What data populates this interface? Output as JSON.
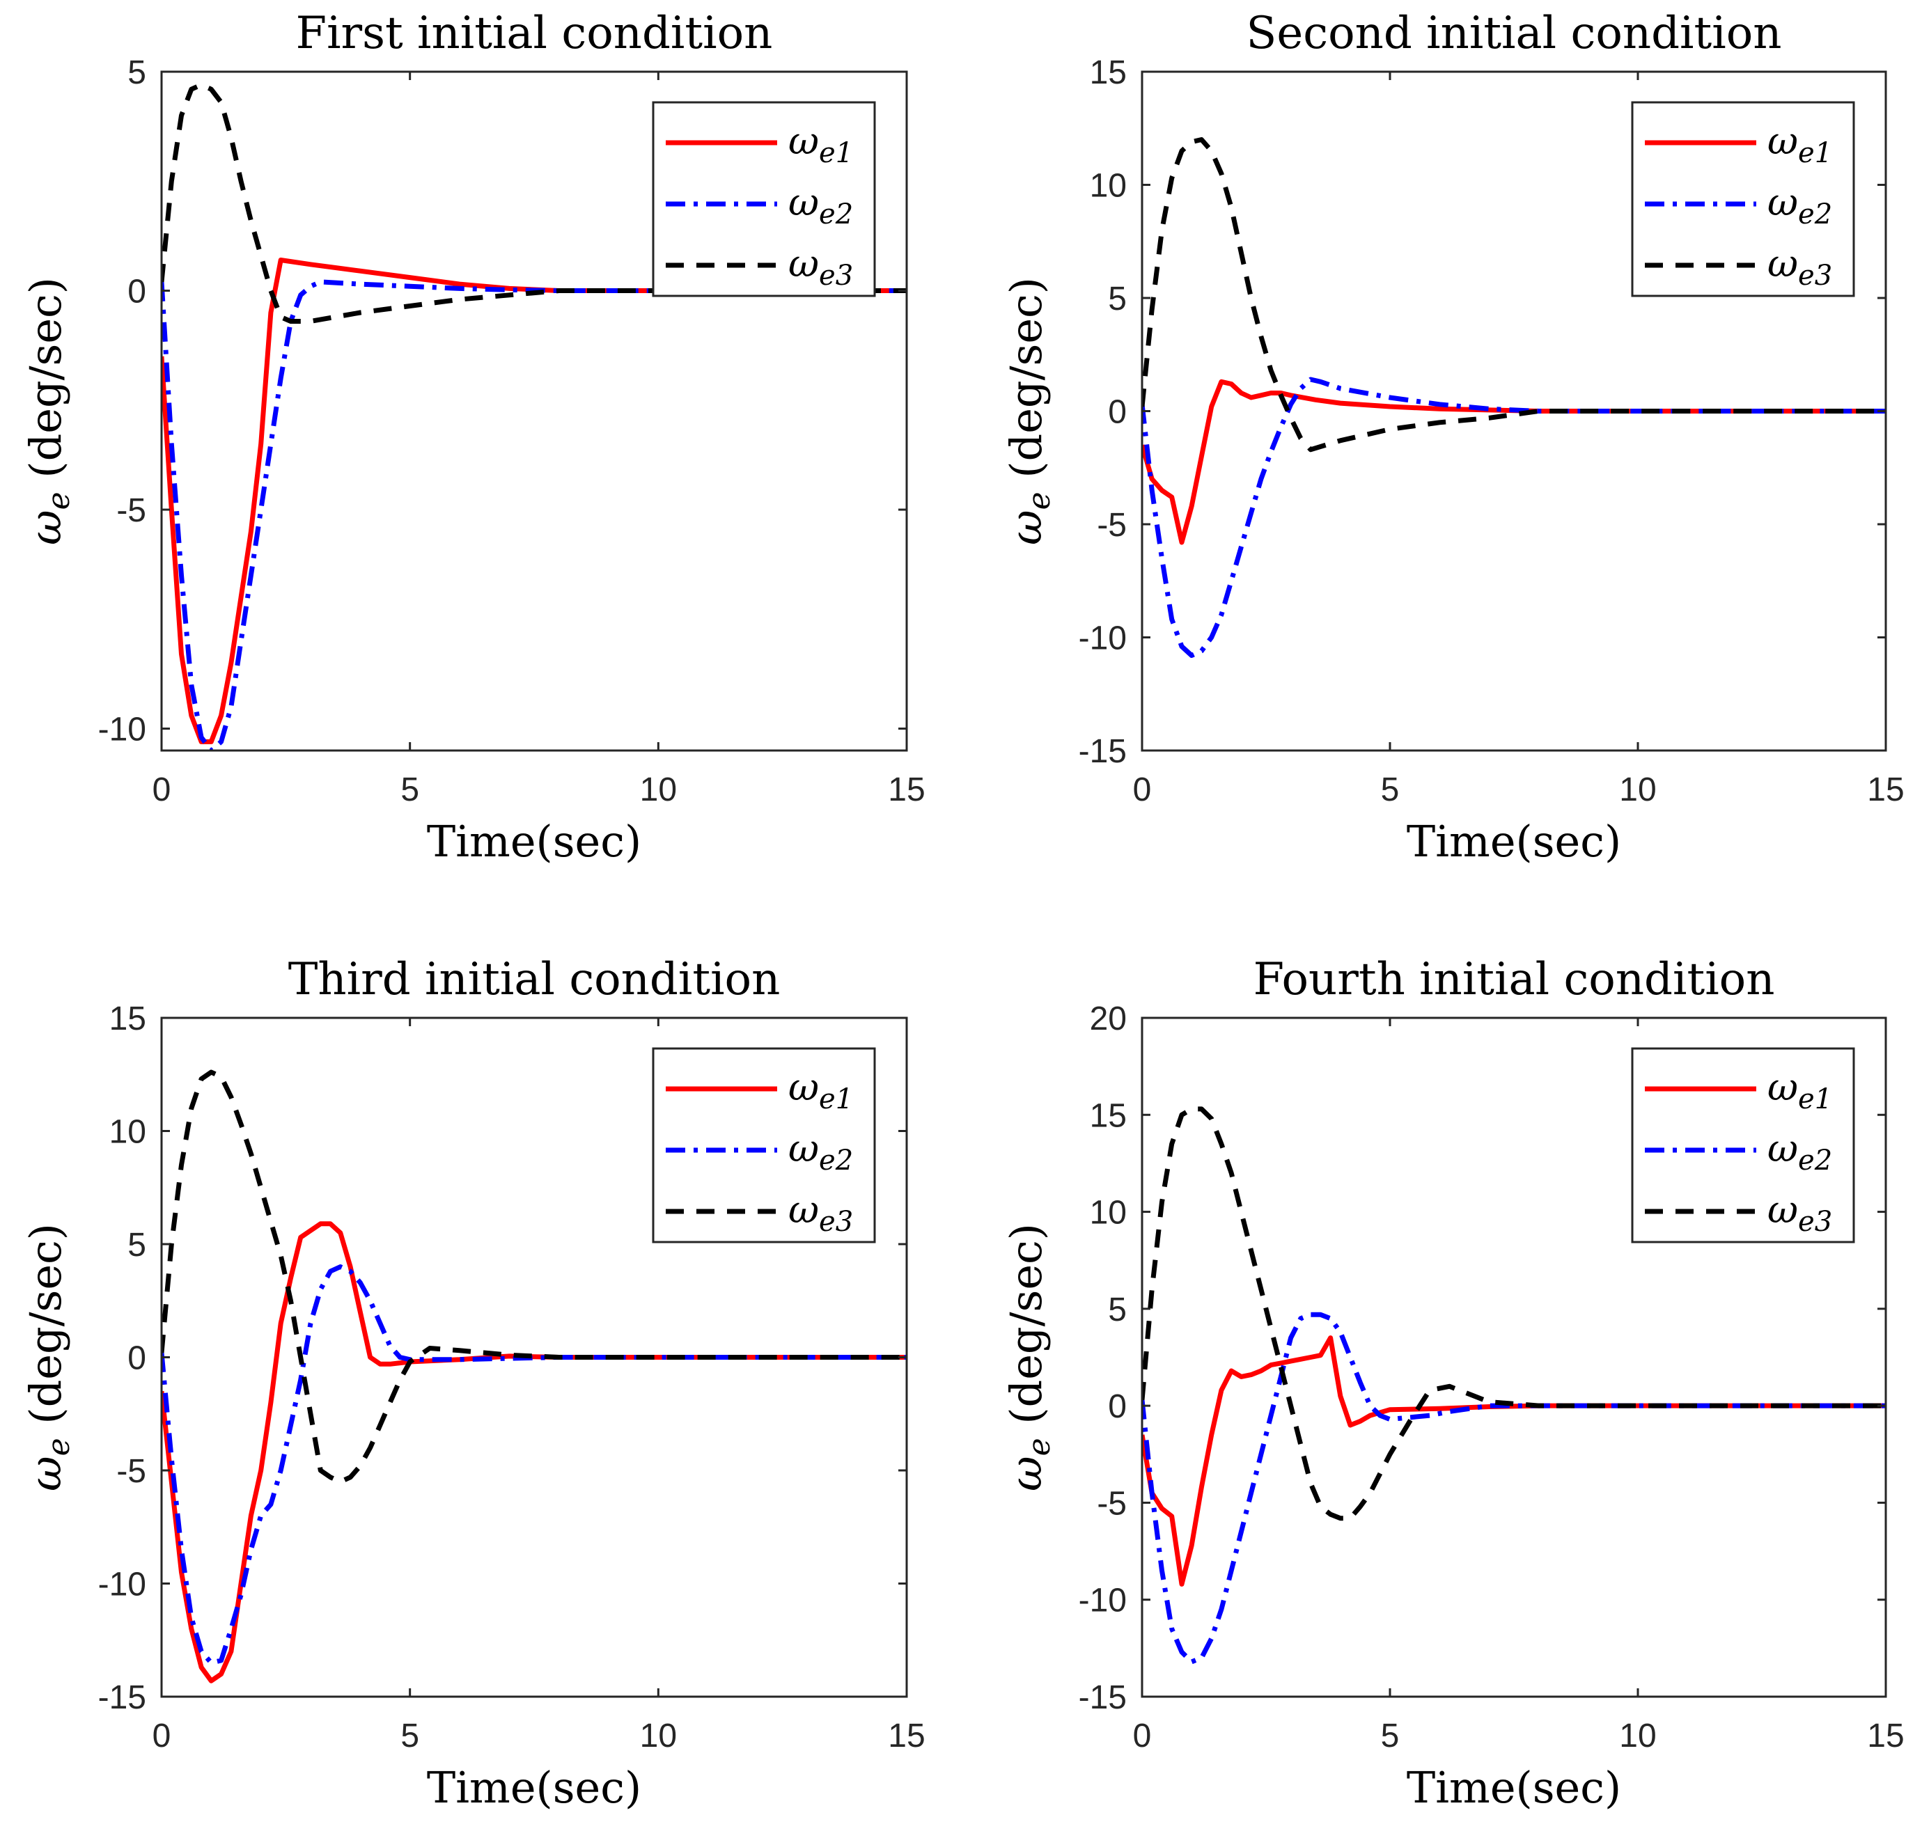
{
  "figure": {
    "colors": {
      "we1": "#ff0000",
      "we2": "#0000ff",
      "we3": "#000000",
      "axis": "#262626"
    }
  },
  "chart_data": [
    {
      "type": "line",
      "title": "First initial condition",
      "xlabel": "Time(sec)",
      "ylabel": "ω_e (deg/sec)",
      "xlim": [
        0,
        15
      ],
      "ylim": [
        -10.5,
        5
      ],
      "xticks": [
        0,
        5,
        10,
        15
      ],
      "yticks": [
        -10,
        -5,
        0,
        5
      ],
      "legend_position": "top-right",
      "series": [
        {
          "name": "ω_e1",
          "style": "solid",
          "x": [
            0,
            0.2,
            0.4,
            0.6,
            0.8,
            1.0,
            1.2,
            1.4,
            1.6,
            1.8,
            2.0,
            2.2,
            2.4,
            3.0,
            4.0,
            5.0,
            6.0,
            7.0,
            8.0,
            15
          ],
          "y": [
            -1.5,
            -5,
            -8.3,
            -9.7,
            -10.3,
            -10.3,
            -9.7,
            -8.5,
            -7.0,
            -5.5,
            -3.5,
            -0.5,
            0.7,
            0.6,
            0.45,
            0.3,
            0.15,
            0.05,
            0,
            0
          ]
        },
        {
          "name": "ω_e2",
          "style": "dashdot",
          "x": [
            0,
            0.2,
            0.4,
            0.6,
            0.8,
            1.0,
            1.2,
            1.4,
            1.6,
            1.8,
            2.0,
            2.2,
            2.4,
            2.6,
            2.8,
            3.0,
            3.2,
            4.0,
            5.0,
            6.0,
            7.0,
            8.0,
            15
          ],
          "y": [
            0.2,
            -3.5,
            -6.5,
            -9.0,
            -10.2,
            -10.5,
            -10.3,
            -9.5,
            -8.0,
            -6.5,
            -5.0,
            -3.5,
            -2.0,
            -0.7,
            -0.1,
            0.1,
            0.2,
            0.15,
            0.1,
            0.05,
            0.02,
            0,
            0
          ]
        },
        {
          "name": "ω_e3",
          "style": "dashed",
          "x": [
            0,
            0.2,
            0.4,
            0.6,
            0.8,
            1.0,
            1.2,
            1.4,
            1.6,
            1.8,
            2.0,
            2.2,
            2.4,
            2.6,
            3.0,
            4.0,
            5.0,
            6.0,
            7.0,
            8.0,
            15
          ],
          "y": [
            0.2,
            2.5,
            4.0,
            4.6,
            4.7,
            4.6,
            4.3,
            3.5,
            2.5,
            1.6,
            0.8,
            0.0,
            -0.6,
            -0.7,
            -0.7,
            -0.5,
            -0.35,
            -0.2,
            -0.1,
            0,
            0
          ]
        }
      ]
    },
    {
      "type": "line",
      "title": "Second initial condition",
      "xlabel": "Time(sec)",
      "ylabel": "ω_e (deg/sec)",
      "xlim": [
        0,
        15
      ],
      "ylim": [
        -15,
        15
      ],
      "xticks": [
        0,
        5,
        10,
        15
      ],
      "yticks": [
        -15,
        -10,
        -5,
        0,
        5,
        10,
        15
      ],
      "legend_position": "top-right",
      "series": [
        {
          "name": "ω_e1",
          "style": "solid",
          "x": [
            0,
            0.2,
            0.4,
            0.6,
            0.8,
            1.0,
            1.2,
            1.4,
            1.6,
            1.8,
            2.0,
            2.2,
            2.4,
            2.6,
            2.8,
            3.0,
            3.5,
            4.0,
            5.0,
            6.0,
            7.0,
            8.0,
            15
          ],
          "y": [
            -1.5,
            -3.0,
            -3.5,
            -3.8,
            -5.8,
            -4.2,
            -2.0,
            0.2,
            1.3,
            1.2,
            0.8,
            0.6,
            0.7,
            0.8,
            0.8,
            0.7,
            0.5,
            0.35,
            0.2,
            0.1,
            0.05,
            0,
            0
          ]
        },
        {
          "name": "ω_e2",
          "style": "dashdot",
          "x": [
            0,
            0.2,
            0.4,
            0.6,
            0.8,
            1.0,
            1.2,
            1.4,
            1.6,
            1.8,
            2.0,
            2.2,
            2.4,
            2.6,
            2.8,
            3.0,
            3.2,
            3.4,
            3.6,
            4.0,
            5.0,
            6.0,
            7.0,
            8.0,
            15
          ],
          "y": [
            0.3,
            -3.5,
            -6.5,
            -9.2,
            -10.4,
            -10.8,
            -10.6,
            -10.0,
            -9.0,
            -7.5,
            -6.0,
            -4.5,
            -3.0,
            -1.8,
            -0.7,
            0.3,
            1.0,
            1.4,
            1.3,
            1.0,
            0.6,
            0.3,
            0.1,
            0,
            0
          ]
        },
        {
          "name": "ω_e3",
          "style": "dashed",
          "x": [
            0,
            0.2,
            0.4,
            0.6,
            0.8,
            1.0,
            1.2,
            1.4,
            1.6,
            1.8,
            2.0,
            2.2,
            2.4,
            2.6,
            2.8,
            3.0,
            3.2,
            3.4,
            4.0,
            5.0,
            6.0,
            7.0,
            8.0,
            15
          ],
          "y": [
            0.2,
            4.5,
            8.0,
            10.3,
            11.5,
            11.9,
            12.0,
            11.5,
            10.5,
            9.0,
            7.0,
            5.0,
            3.3,
            1.8,
            0.7,
            -0.3,
            -1.2,
            -1.7,
            -1.3,
            -0.8,
            -0.5,
            -0.3,
            0,
            0
          ]
        }
      ]
    },
    {
      "type": "line",
      "title": "Third initial condition",
      "xlabel": "Time(sec)",
      "ylabel": "ω_e (deg/sec)",
      "xlim": [
        0,
        15
      ],
      "ylim": [
        -15,
        15
      ],
      "xticks": [
        0,
        5,
        10,
        15
      ],
      "yticks": [
        -15,
        -10,
        -5,
        0,
        5,
        10,
        15
      ],
      "legend_position": "top-right",
      "series": [
        {
          "name": "ω_e1",
          "style": "solid",
          "x": [
            0,
            0.2,
            0.4,
            0.6,
            0.8,
            1.0,
            1.2,
            1.4,
            1.6,
            1.8,
            2.0,
            2.2,
            2.4,
            2.6,
            2.8,
            3.0,
            3.2,
            3.4,
            3.6,
            3.8,
            4.0,
            4.2,
            4.4,
            4.6,
            5.0,
            6.0,
            7.0,
            8.0,
            15
          ],
          "y": [
            -1.5,
            -5.5,
            -9.5,
            -12.0,
            -13.7,
            -14.3,
            -14.0,
            -13.0,
            -10.0,
            -7.0,
            -5.0,
            -2.0,
            1.5,
            3.5,
            5.3,
            5.6,
            5.9,
            5.9,
            5.5,
            4.0,
            2.0,
            0.0,
            -0.3,
            -0.3,
            -0.2,
            -0.1,
            0.05,
            0,
            0
          ]
        },
        {
          "name": "ω_e2",
          "style": "dashdot",
          "x": [
            0,
            0.2,
            0.4,
            0.6,
            0.8,
            1.0,
            1.2,
            1.4,
            1.6,
            1.8,
            2.0,
            2.2,
            2.4,
            2.6,
            2.8,
            3.0,
            3.2,
            3.4,
            3.6,
            3.8,
            4.0,
            4.2,
            4.4,
            4.6,
            4.8,
            5.0,
            6.0,
            7.0,
            8.0,
            15
          ],
          "y": [
            0.2,
            -4.5,
            -8.5,
            -11.5,
            -13.0,
            -13.5,
            -13.4,
            -12.0,
            -10.5,
            -8.5,
            -7.0,
            -6.5,
            -5.0,
            -3.0,
            -1.0,
            1.5,
            3.0,
            3.8,
            4.0,
            3.8,
            3.3,
            2.5,
            1.5,
            0.5,
            0.0,
            -0.1,
            -0.1,
            -0.05,
            0,
            0
          ]
        },
        {
          "name": "ω_e3",
          "style": "dashed",
          "x": [
            0,
            0.2,
            0.4,
            0.6,
            0.8,
            1.0,
            1.2,
            1.4,
            1.6,
            1.8,
            2.0,
            2.2,
            2.4,
            2.6,
            2.8,
            3.0,
            3.2,
            3.4,
            3.6,
            3.8,
            4.0,
            4.2,
            4.4,
            4.6,
            4.8,
            5.0,
            5.4,
            6.0,
            7.0,
            8.0,
            15
          ],
          "y": [
            0.2,
            5.0,
            8.5,
            11.0,
            12.3,
            12.6,
            12.4,
            11.5,
            10.3,
            9.0,
            7.5,
            6.0,
            4.5,
            2.5,
            0.0,
            -2.5,
            -5.0,
            -5.3,
            -5.5,
            -5.3,
            -4.8,
            -4.0,
            -3.0,
            -2.0,
            -1.0,
            -0.2,
            0.4,
            0.3,
            0.1,
            0,
            0
          ]
        }
      ]
    },
    {
      "type": "line",
      "title": "Fourth initial condition",
      "xlabel": "Time(sec)",
      "ylabel": "ω_e (deg/sec)",
      "xlim": [
        0,
        15
      ],
      "ylim": [
        -15,
        20
      ],
      "xticks": [
        0,
        5,
        10,
        15
      ],
      "yticks": [
        -15,
        -10,
        -5,
        0,
        5,
        10,
        15,
        20
      ],
      "legend_position": "top-right",
      "series": [
        {
          "name": "ω_e1",
          "style": "solid",
          "x": [
            0,
            0.2,
            0.4,
            0.6,
            0.8,
            1.0,
            1.2,
            1.4,
            1.6,
            1.8,
            2.0,
            2.2,
            2.4,
            2.6,
            2.8,
            3.0,
            3.2,
            3.4,
            3.6,
            3.8,
            4.0,
            4.2,
            4.4,
            4.6,
            5.0,
            6.0,
            7.0,
            8.0,
            15
          ],
          "y": [
            -1.5,
            -4.5,
            -5.3,
            -5.7,
            -9.2,
            -7.2,
            -4.2,
            -1.5,
            0.8,
            1.8,
            1.5,
            1.6,
            1.8,
            2.1,
            2.2,
            2.3,
            2.4,
            2.5,
            2.6,
            3.5,
            0.5,
            -1.0,
            -0.8,
            -0.5,
            -0.2,
            -0.15,
            -0.05,
            0,
            0
          ]
        },
        {
          "name": "ω_e2",
          "style": "dashdot",
          "x": [
            0,
            0.2,
            0.4,
            0.6,
            0.8,
            1.0,
            1.2,
            1.4,
            1.6,
            1.8,
            2.0,
            2.2,
            2.4,
            2.6,
            2.8,
            3.0,
            3.2,
            3.4,
            3.6,
            3.8,
            4.0,
            4.2,
            4.4,
            4.6,
            4.8,
            5.0,
            5.4,
            5.8,
            6.2,
            7.0,
            8.0,
            15
          ],
          "y": [
            0.3,
            -4.5,
            -8.5,
            -11.5,
            -12.7,
            -13.2,
            -13.0,
            -12.0,
            -10.5,
            -8.5,
            -6.5,
            -4.5,
            -2.5,
            -0.5,
            1.5,
            3.5,
            4.5,
            4.7,
            4.7,
            4.5,
            3.8,
            2.5,
            1.2,
            0.0,
            -0.5,
            -0.7,
            -0.6,
            -0.5,
            -0.3,
            0,
            0,
            0
          ]
        },
        {
          "name": "ω_e3",
          "style": "dashed",
          "x": [
            0,
            0.2,
            0.4,
            0.6,
            0.8,
            1.0,
            1.2,
            1.4,
            1.6,
            1.8,
            2.0,
            2.2,
            2.4,
            2.6,
            2.8,
            3.0,
            3.2,
            3.4,
            3.6,
            3.8,
            4.0,
            4.2,
            4.4,
            4.6,
            4.8,
            5.0,
            5.4,
            5.8,
            6.2,
            7.0,
            8.0,
            15
          ],
          "y": [
            0.3,
            6.0,
            10.5,
            13.5,
            15.0,
            15.3,
            15.3,
            14.8,
            13.5,
            12.0,
            10.0,
            8.0,
            6.0,
            4.0,
            2.0,
            0.0,
            -2.0,
            -4.0,
            -5.2,
            -5.6,
            -5.8,
            -5.8,
            -5.2,
            -4.5,
            -3.5,
            -2.5,
            -0.8,
            0.8,
            1.0,
            0.2,
            0,
            0
          ]
        }
      ]
    }
  ]
}
